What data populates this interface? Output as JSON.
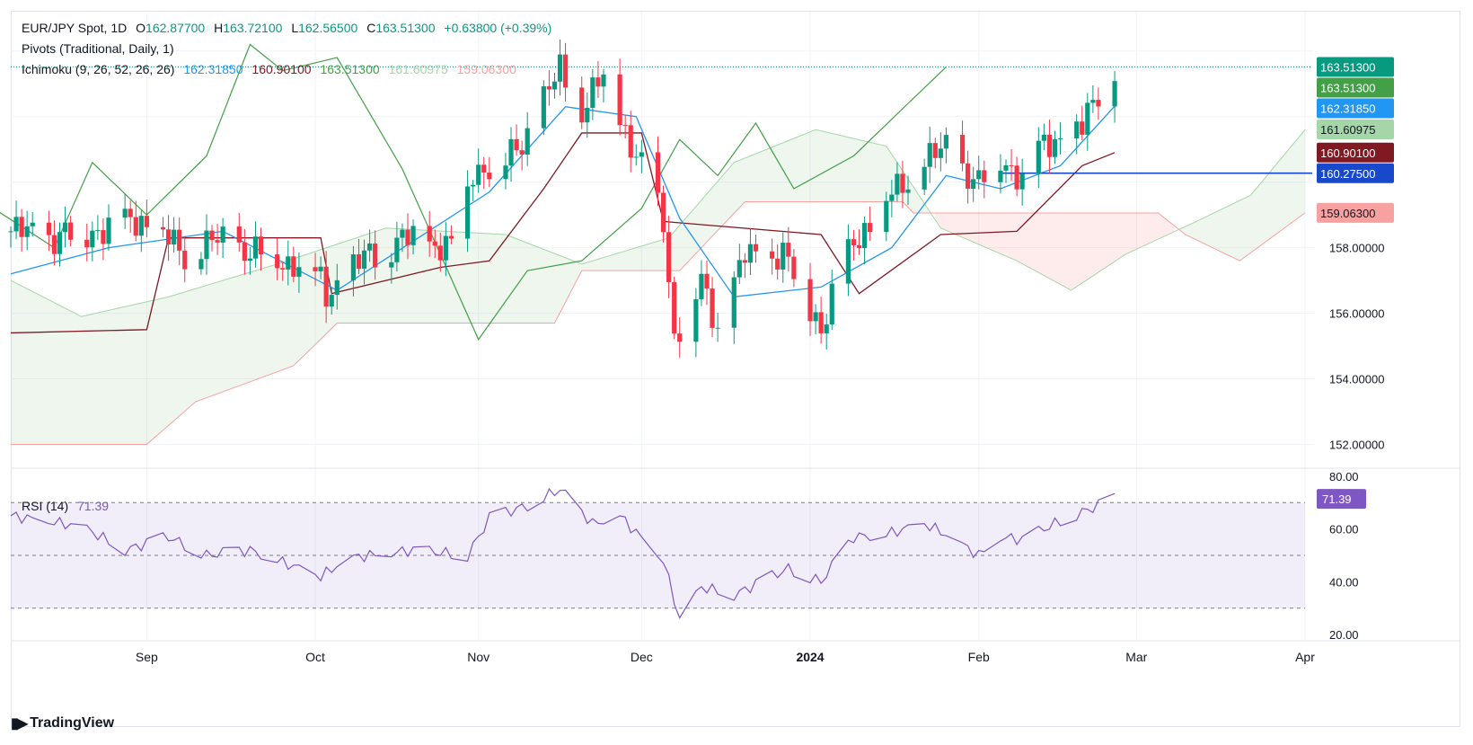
{
  "header": {
    "symbol": "EUR/JPY Spot, 1D",
    "ohlc": {
      "o_label": "O",
      "o": "162.87700",
      "h_label": "H",
      "h": "163.72100",
      "l_label": "L",
      "l": "162.56500",
      "c_label": "C",
      "c": "163.51300",
      "change": "+0.63800 (+0.39%)"
    },
    "pivots": "Pivots (Traditional, Daily, 1)",
    "ichimoku": {
      "label": "Ichimoku (9, 26, 52, 26, 26)",
      "values": [
        "162.31850",
        "160.90100",
        "163.51300",
        "161.60975",
        "159.06300"
      ],
      "colors": [
        "#2196f3",
        "#801922",
        "#43a047",
        "#a5d6a7",
        "#f7a1a1"
      ]
    }
  },
  "rsi": {
    "label": "RSI (14)",
    "value": "71.39",
    "color": "#7e57c2",
    "axis": [
      "80.00",
      "60.00",
      "40.00",
      "20.00"
    ],
    "levels": [
      70,
      50,
      30
    ]
  },
  "price_axis": {
    "ticks": [
      "158.00000",
      "156.00000",
      "154.00000",
      "152.00000"
    ]
  },
  "price_labels": [
    {
      "text": "163.51300",
      "price": 163.513,
      "bg": "#089981",
      "fg": "#ffffff"
    },
    {
      "text": "163.51300",
      "price": 163.513,
      "bg": "#43a047",
      "fg": "#ffffff"
    },
    {
      "text": "162.31850",
      "price": 162.3185,
      "bg": "#2196f3",
      "fg": "#ffffff"
    },
    {
      "text": "161.60975",
      "price": 161.60975,
      "bg": "#a5d6a7",
      "fg": "#131722"
    },
    {
      "text": "160.90100",
      "price": 160.901,
      "bg": "#801922",
      "fg": "#ffffff"
    },
    {
      "text": "160.27500",
      "price": 160.275,
      "bg": "#1848cc",
      "fg": "#ffffff"
    },
    {
      "text": "159.06300",
      "price": 159.063,
      "bg": "#f7a1a1",
      "fg": "#131722"
    }
  ],
  "time_axis": [
    {
      "label": "Sep",
      "date": "2023-09-01"
    },
    {
      "label": "Oct",
      "date": "2023-10-02"
    },
    {
      "label": "Nov",
      "date": "2023-11-01"
    },
    {
      "label": "Dec",
      "date": "2023-12-01"
    },
    {
      "label": "2024",
      "date": "2024-01-01",
      "bold": true
    },
    {
      "label": "Feb",
      "date": "2024-02-01"
    },
    {
      "label": "Mar",
      "date": "2024-03-01"
    },
    {
      "label": "Apr",
      "date": "2024-04-01"
    }
  ],
  "brand": "TradingView",
  "chart_data": {
    "type": "line",
    "title": "",
    "x_start": "2023-08-07",
    "x_end": "2024-04-01",
    "price_range": [
      151.3,
      165.2
    ],
    "colors": {
      "up": "#089981",
      "down": "#f23645",
      "tenkan": "#2196f3",
      "kijun": "#801922",
      "chikou": "#43a047",
      "span_a": "#a5d6a7",
      "span_b": "#f7a1a1",
      "pivot": "#1848cc",
      "rsi": "#7e57c2"
    },
    "pivot_line": {
      "price": 160.275,
      "from": "2024-02-05"
    },
    "close_anchors": [
      [
        "2023-08-07",
        158.5
      ],
      [
        "2023-08-15",
        158.3
      ],
      [
        "2023-08-24",
        158.6
      ],
      [
        "2023-08-31",
        158.9
      ],
      [
        "2023-09-08",
        157.8
      ],
      [
        "2023-09-14",
        158.2
      ],
      [
        "2023-09-22",
        157.8
      ],
      [
        "2023-09-29",
        157.5
      ],
      [
        "2023-10-03",
        157.0
      ],
      [
        "2023-10-04",
        156.6
      ],
      [
        "2023-10-12",
        157.8
      ],
      [
        "2023-10-20",
        158.3
      ],
      [
        "2023-10-27",
        158.0
      ],
      [
        "2023-10-31",
        160.4
      ],
      [
        "2023-11-06",
        160.6
      ],
      [
        "2023-11-10",
        161.5
      ],
      [
        "2023-11-16",
        163.4
      ],
      [
        "2023-11-20",
        162.2
      ],
      [
        "2023-11-24",
        163.2
      ],
      [
        "2023-11-29",
        161.2
      ],
      [
        "2023-12-05",
        158.9
      ],
      [
        "2023-12-07",
        155.3
      ],
      [
        "2023-12-12",
        156.9
      ],
      [
        "2023-12-15",
        155.6
      ],
      [
        "2023-12-20",
        157.7
      ],
      [
        "2023-12-27",
        157.8
      ],
      [
        "2024-01-03",
        155.6
      ],
      [
        "2024-01-09",
        158.2
      ],
      [
        "2024-01-16",
        159.6
      ],
      [
        "2024-01-22",
        160.6
      ],
      [
        "2024-01-26",
        161.0
      ],
      [
        "2024-02-01",
        159.9
      ],
      [
        "2024-02-05",
        160.8
      ],
      [
        "2024-02-09",
        160.1
      ],
      [
        "2024-02-13",
        161.2
      ],
      [
        "2024-02-20",
        161.6
      ],
      [
        "2024-02-23",
        162.8
      ],
      [
        "2024-02-26",
        163.513
      ]
    ],
    "tenkan": [
      [
        "2023-08-07",
        157.2
      ],
      [
        "2023-08-25",
        158.0
      ],
      [
        "2023-09-15",
        158.5
      ],
      [
        "2023-10-06",
        156.7
      ],
      [
        "2023-10-20",
        158.2
      ],
      [
        "2023-11-03",
        159.7
      ],
      [
        "2023-11-17",
        162.3
      ],
      [
        "2023-11-30",
        162.0
      ],
      [
        "2023-12-08",
        158.9
      ],
      [
        "2023-12-18",
        156.5
      ],
      [
        "2024-01-03",
        156.8
      ],
      [
        "2024-01-16",
        158.0
      ],
      [
        "2024-01-26",
        160.2
      ],
      [
        "2024-02-05",
        159.8
      ],
      [
        "2024-02-16",
        160.5
      ],
      [
        "2024-02-26",
        162.3185
      ]
    ],
    "kijun": [
      [
        "2023-08-07",
        155.4
      ],
      [
        "2023-09-01",
        155.5
      ],
      [
        "2023-09-05",
        158.3
      ],
      [
        "2023-10-03",
        158.3
      ],
      [
        "2023-10-05",
        156.6
      ],
      [
        "2023-10-25",
        157.4
      ],
      [
        "2023-11-03",
        157.6
      ],
      [
        "2023-11-13",
        159.8
      ],
      [
        "2023-11-20",
        161.5
      ],
      [
        "2023-12-01",
        161.5
      ],
      [
        "2023-12-05",
        158.8
      ],
      [
        "2024-01-03",
        158.4
      ],
      [
        "2024-01-10",
        156.6
      ],
      [
        "2024-01-25",
        158.4
      ],
      [
        "2024-02-08",
        158.5
      ],
      [
        "2024-02-20",
        160.5
      ],
      [
        "2024-02-26",
        160.901
      ]
    ],
    "chikou": [
      [
        "2023-07-07",
        156.6
      ],
      [
        "2023-07-20",
        157.8
      ],
      [
        "2023-08-01",
        159.5
      ],
      [
        "2023-08-15",
        158.0
      ],
      [
        "2023-08-22",
        160.6
      ],
      [
        "2023-09-01",
        159.0
      ],
      [
        "2023-09-12",
        160.8
      ],
      [
        "2023-09-20",
        164.2
      ],
      [
        "2023-09-26",
        163.4
      ],
      [
        "2023-10-06",
        163.8
      ],
      [
        "2023-10-18",
        160.4
      ],
      [
        "2023-11-01",
        155.2
      ],
      [
        "2023-11-10",
        157.3
      ],
      [
        "2023-11-20",
        157.6
      ],
      [
        "2023-12-01",
        159.2
      ],
      [
        "2023-12-08",
        161.3
      ],
      [
        "2023-12-15",
        160.2
      ],
      [
        "2023-12-22",
        161.8
      ],
      [
        "2023-12-29",
        159.8
      ],
      [
        "2024-01-09",
        160.8
      ],
      [
        "2024-01-19",
        162.4
      ],
      [
        "2024-01-26",
        163.513
      ]
    ],
    "span_a": [
      [
        "2023-08-07",
        157.0
      ],
      [
        "2023-08-20",
        155.9
      ],
      [
        "2023-09-05",
        156.5
      ],
      [
        "2023-09-25",
        157.5
      ],
      [
        "2023-10-15",
        158.6
      ],
      [
        "2023-11-06",
        158.4
      ],
      [
        "2023-11-20",
        157.5
      ],
      [
        "2023-12-06",
        158.3
      ],
      [
        "2023-12-18",
        160.6
      ],
      [
        "2024-01-02",
        161.6
      ],
      [
        "2024-01-15",
        161.1
      ],
      [
        "2024-01-25",
        158.6
      ],
      [
        "2024-02-08",
        157.6
      ],
      [
        "2024-02-18",
        156.7
      ],
      [
        "2024-02-28",
        157.8
      ],
      [
        "2024-03-12",
        158.8
      ],
      [
        "2024-03-22",
        159.6
      ],
      [
        "2024-04-01",
        161.6
      ]
    ],
    "span_b": [
      [
        "2023-08-07",
        152.0
      ],
      [
        "2023-09-01",
        152.0
      ],
      [
        "2023-09-10",
        153.3
      ],
      [
        "2023-09-28",
        154.4
      ],
      [
        "2023-10-06",
        155.7
      ],
      [
        "2023-11-15",
        155.7
      ],
      [
        "2023-11-20",
        157.3
      ],
      [
        "2023-12-08",
        157.3
      ],
      [
        "2023-12-20",
        159.4
      ],
      [
        "2024-01-18",
        159.4
      ],
      [
        "2024-01-20",
        159.06
      ],
      [
        "2024-03-05",
        159.06
      ],
      [
        "2024-03-10",
        158.4
      ],
      [
        "2024-03-20",
        157.6
      ],
      [
        "2024-04-01",
        159.063
      ]
    ],
    "rsi_anchors": [
      [
        "2023-08-07",
        65
      ],
      [
        "2023-08-20",
        61
      ],
      [
        "2023-08-28",
        52
      ],
      [
        "2023-09-05",
        57
      ],
      [
        "2023-09-12",
        50
      ],
      [
        "2023-09-20",
        52
      ],
      [
        "2023-10-03",
        42
      ],
      [
        "2023-10-08",
        49
      ],
      [
        "2023-10-20",
        52
      ],
      [
        "2023-10-30",
        50
      ],
      [
        "2023-11-03",
        64
      ],
      [
        "2023-11-10",
        69
      ],
      [
        "2023-11-16",
        75
      ],
      [
        "2023-11-22",
        62
      ],
      [
        "2023-11-27",
        65
      ],
      [
        "2023-12-05",
        48
      ],
      [
        "2023-12-08",
        26
      ],
      [
        "2023-12-12",
        38
      ],
      [
        "2023-12-18",
        35
      ],
      [
        "2023-12-28",
        45
      ],
      [
        "2024-01-03",
        40
      ],
      [
        "2024-01-09",
        57
      ],
      [
        "2024-01-15",
        58
      ],
      [
        "2024-01-22",
        62
      ],
      [
        "2024-01-26",
        58
      ],
      [
        "2024-02-01",
        50
      ],
      [
        "2024-02-05",
        57
      ],
      [
        "2024-02-09",
        56
      ],
      [
        "2024-02-16",
        63
      ],
      [
        "2024-02-26",
        71.39
      ]
    ]
  }
}
